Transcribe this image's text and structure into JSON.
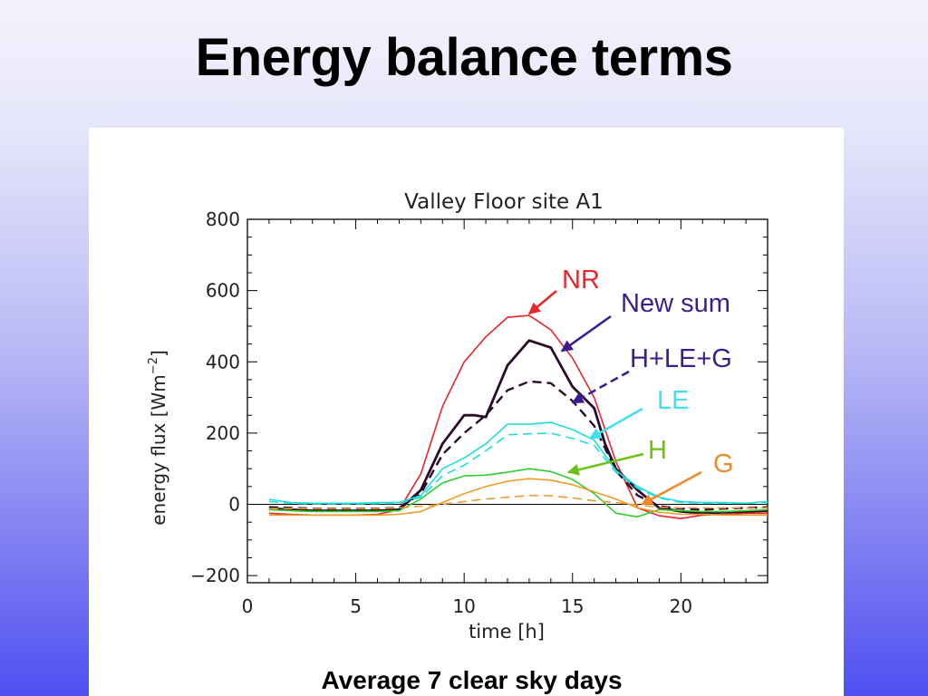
{
  "slide": {
    "title": "Energy balance terms",
    "caption": "Average 7 clear sky days"
  },
  "chart_data": {
    "type": "line",
    "title": "Valley Floor site A1",
    "xlabel": "time [h]",
    "ylabel": "energy flux [Wm",
    "ylabel_sup": "−2",
    "ylabel_end": "]",
    "xlim": [
      0,
      24
    ],
    "ylim": [
      -220,
      800
    ],
    "xticks": [
      0,
      5,
      10,
      15,
      20
    ],
    "yticks": [
      -200,
      0,
      200,
      400,
      600,
      800
    ],
    "ytick_labels": [
      "−200",
      "0",
      "200",
      "400",
      "600",
      "800"
    ],
    "grid": false,
    "zero_line": true,
    "series": [
      {
        "name": "NR",
        "color": "#e8262b",
        "style": "solid",
        "x": [
          1,
          2,
          3,
          4,
          5,
          6,
          7,
          8,
          9,
          10,
          11,
          12,
          13,
          14,
          15,
          16,
          17,
          18,
          19,
          20,
          21,
          22,
          23,
          24
        ],
        "values": [
          -25,
          -28,
          -30,
          -30,
          -30,
          -28,
          -15,
          85,
          275,
          400,
          470,
          525,
          530,
          490,
          410,
          300,
          120,
          -10,
          -32,
          -40,
          -30,
          -28,
          -25,
          -25
        ]
      },
      {
        "name": "New sum",
        "color": "#2a0b2a",
        "style": "solid-thick",
        "x": [
          1,
          2,
          3,
          4,
          5,
          6,
          7,
          8,
          9,
          10,
          10.5,
          11,
          12,
          13,
          14,
          15,
          16,
          16.5,
          17,
          18,
          19,
          20,
          21,
          22,
          23,
          24
        ],
        "values": [
          -12,
          -15,
          -18,
          -18,
          -18,
          -18,
          -15,
          40,
          170,
          250,
          250,
          245,
          390,
          460,
          440,
          330,
          270,
          170,
          100,
          40,
          -10,
          -20,
          -25,
          -22,
          -20,
          -18
        ]
      },
      {
        "name": "H+LE+G",
        "color": "#2a0b2a",
        "style": "dashed",
        "x": [
          1,
          2,
          3,
          4,
          5,
          6,
          7,
          8,
          9,
          10,
          11,
          12,
          13,
          14,
          15,
          16,
          17,
          18,
          19,
          20,
          21,
          22,
          23,
          24
        ],
        "values": [
          -8,
          -10,
          -12,
          -12,
          -12,
          -12,
          -10,
          30,
          140,
          200,
          250,
          320,
          345,
          340,
          290,
          220,
          95,
          25,
          -5,
          -12,
          -15,
          -12,
          -10,
          -8
        ]
      },
      {
        "name": "LE",
        "color": "#22dddd",
        "style": "solid",
        "x": [
          1,
          2,
          3,
          4,
          5,
          6,
          7,
          8,
          9,
          10,
          11,
          12,
          13,
          14,
          15,
          16,
          17,
          18,
          19,
          20,
          21,
          22,
          23,
          24
        ],
        "values": [
          14,
          5,
          3,
          3,
          3,
          5,
          5,
          25,
          100,
          130,
          170,
          225,
          225,
          230,
          210,
          180,
          95,
          50,
          20,
          8,
          5,
          5,
          3,
          8
        ]
      },
      {
        "name": "LE dashed",
        "color": "#22dddd",
        "style": "dashed",
        "x": [
          1,
          2,
          3,
          4,
          5,
          6,
          7,
          8,
          9,
          10,
          11,
          12,
          13,
          14,
          15,
          16,
          17,
          18,
          19,
          20,
          21,
          22,
          23,
          24
        ],
        "values": [
          8,
          3,
          1,
          1,
          1,
          2,
          3,
          20,
          80,
          110,
          150,
          195,
          198,
          200,
          185,
          165,
          90,
          45,
          18,
          5,
          3,
          3,
          3,
          5
        ]
      },
      {
        "name": "H",
        "color": "#2fcf2f",
        "style": "solid",
        "x": [
          1,
          2,
          3,
          4,
          5,
          6,
          7,
          8,
          9,
          10,
          11,
          12,
          13,
          14,
          15,
          16,
          17,
          18,
          18.5,
          19,
          20,
          21,
          22,
          23,
          24
        ],
        "values": [
          -15,
          -18,
          -20,
          -20,
          -20,
          -20,
          -18,
          15,
          60,
          80,
          82,
          90,
          100,
          92,
          70,
          30,
          -25,
          -35,
          -25,
          -15,
          -18,
          -20,
          -20,
          -18,
          -15
        ]
      },
      {
        "name": "G",
        "color": "#f2992a",
        "style": "solid",
        "x": [
          1,
          2,
          3,
          4,
          5,
          6,
          7,
          8,
          9,
          10,
          11,
          12,
          13,
          14,
          15,
          16,
          17,
          18,
          19,
          20,
          21,
          22,
          23,
          24
        ],
        "values": [
          -30,
          -30,
          -30,
          -30,
          -30,
          -30,
          -28,
          -20,
          5,
          30,
          50,
          65,
          72,
          68,
          55,
          35,
          15,
          -10,
          -22,
          -28,
          -28,
          -30,
          -30,
          -30
        ]
      },
      {
        "name": "G dashed",
        "color": "#f2992a",
        "style": "dashed",
        "x": [
          1,
          2,
          3,
          4,
          5,
          6,
          7,
          8,
          9,
          10,
          11,
          12,
          13,
          14,
          15,
          16,
          17,
          18,
          19,
          20,
          21,
          22,
          23,
          24
        ],
        "values": [
          -12,
          -12,
          -12,
          -12,
          -12,
          -12,
          -10,
          -5,
          0,
          8,
          15,
          20,
          25,
          24,
          18,
          10,
          5,
          -2,
          -8,
          -10,
          -10,
          -10,
          -10,
          -10
        ]
      }
    ],
    "annotations": [
      {
        "text": "NR",
        "color": "#e8262b",
        "target_x": 13.0,
        "target_y": 535
      },
      {
        "text": "New sum",
        "color": "#3a1f8c",
        "target_x": 14.5,
        "target_y": 430
      },
      {
        "text": "H+LE+G",
        "color": "#3a1f8c",
        "target_x": 15.0,
        "target_y": 285
      },
      {
        "text": "LE",
        "color": "#44e0f0",
        "target_x": 15.8,
        "target_y": 185
      },
      {
        "text": "H",
        "color": "#6cc21a",
        "target_x": 14.8,
        "target_y": 90
      },
      {
        "text": "G",
        "color": "#f2882a",
        "target_x": 18.2,
        "target_y": 0
      }
    ]
  }
}
